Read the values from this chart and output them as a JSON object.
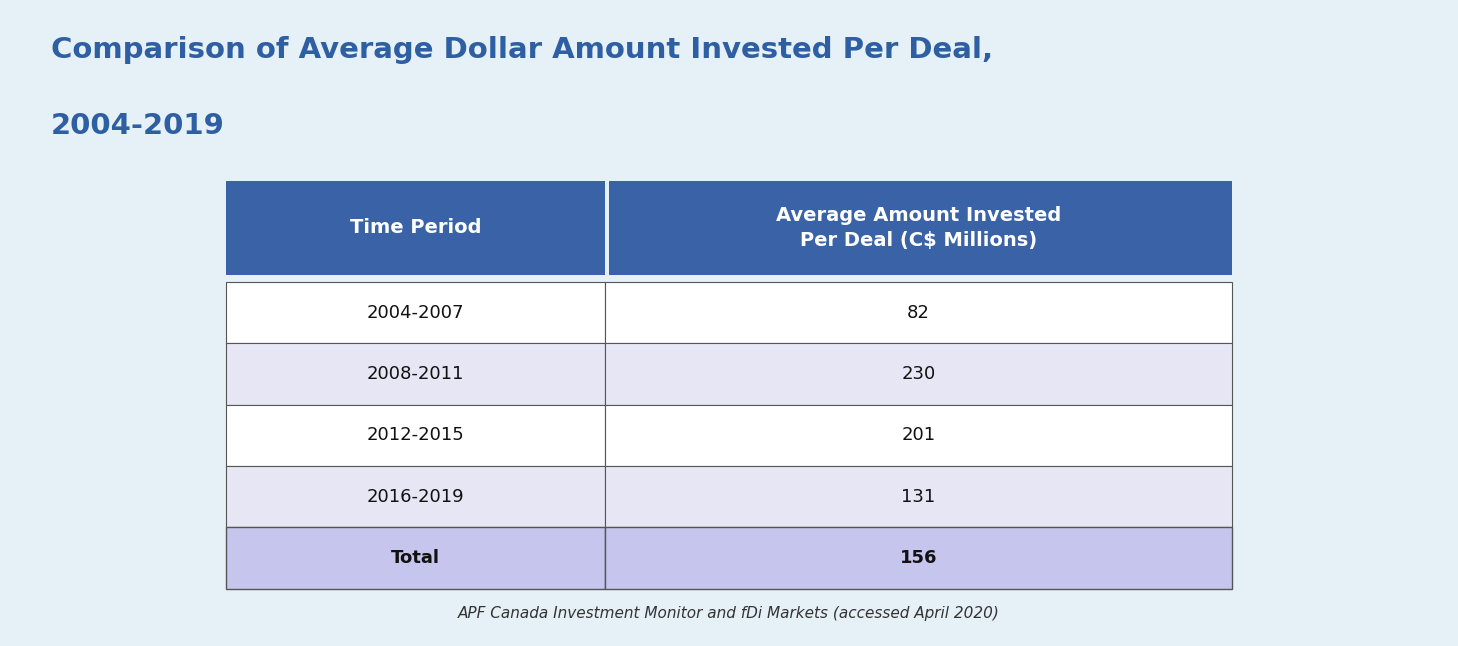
{
  "title_line1": "Comparison of Average Dollar Amount Invested Per Deal,",
  "title_line2": "2004-2019",
  "title_color": "#2E5FA3",
  "title_bg_color": "#DCE9F5",
  "header_bg_color": "#3A62A7",
  "header_text_color": "#FFFFFF",
  "col1_header": "Time Period",
  "col2_header": "Average Amount Invested\nPer Deal (C$ Millions)",
  "rows": [
    {
      "period": "2004-2007",
      "value": "82",
      "row_bg": "#FFFFFF"
    },
    {
      "period": "2008-2011",
      "value": "230",
      "row_bg": "#E6E6F5"
    },
    {
      "period": "2012-2015",
      "value": "201",
      "row_bg": "#FFFFFF"
    },
    {
      "period": "2016-2019",
      "value": "131",
      "row_bg": "#E6E6F5"
    }
  ],
  "total_row": {
    "period": "Total",
    "value": "156",
    "row_bg": "#C5C5EE"
  },
  "footer_text": "APF Canada Investment Monitor and fDi Markets (accessed April 2020)",
  "footer_bg_color": "#E8E8E8",
  "fig_bg_color": "#E6F0F7",
  "table_border_color": "#555555",
  "fig_width": 14.58,
  "fig_height": 6.46
}
